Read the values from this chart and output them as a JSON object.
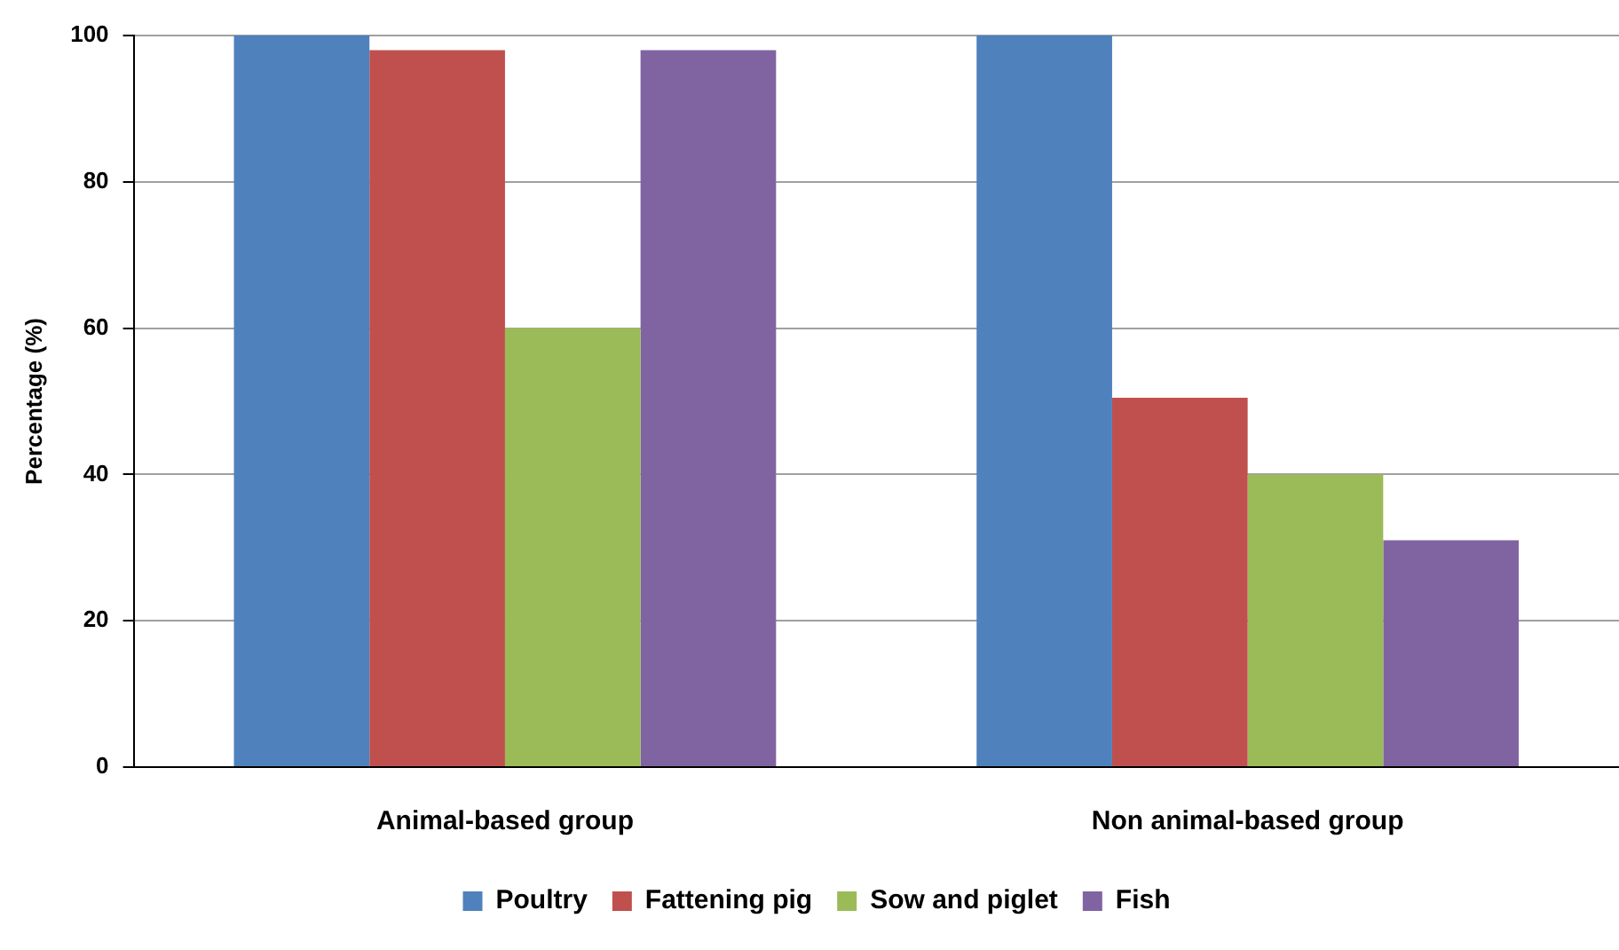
{
  "chart_data": {
    "type": "bar",
    "ylabel": "Percentage (%)",
    "categories": [
      "Animal-based group",
      "Non animal-based group"
    ],
    "series": [
      {
        "name": "Poultry",
        "color": "#4f81bd",
        "values": [
          100,
          100
        ]
      },
      {
        "name": "Fattening pig",
        "color": "#c0504d",
        "values": [
          98,
          50.5
        ]
      },
      {
        "name": "Sow and piglet",
        "color": "#9bbb59",
        "values": [
          60,
          40
        ]
      },
      {
        "name": "Fish",
        "color": "#8064a2",
        "values": [
          98,
          31
        ]
      }
    ],
    "ylim": [
      0,
      100
    ],
    "yticks": [
      0,
      20,
      40,
      60,
      80,
      100
    ],
    "grid": "y",
    "legend": "bottom"
  }
}
